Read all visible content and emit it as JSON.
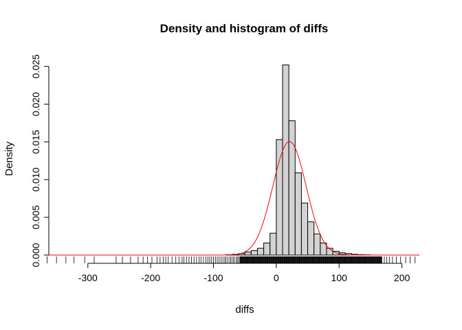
{
  "chart_data": {
    "type": "bar",
    "title": "Density and histogram of diffs",
    "xlabel": "diffs",
    "ylabel": "Density",
    "xlim": [
      -360,
      230
    ],
    "ylim": [
      0,
      0.0256
    ],
    "x_ticks": [
      -300,
      -200,
      -100,
      0,
      100,
      200
    ],
    "x_tick_labels": [
      "-300",
      "-200",
      "-100",
      "0",
      "100",
      "200"
    ],
    "y_ticks": [
      0.0,
      0.005,
      0.01,
      0.015,
      0.02,
      0.025
    ],
    "y_tick_labels": [
      "0.000",
      "0.005",
      "0.010",
      "0.015",
      "0.020",
      "0.025"
    ],
    "grid": false,
    "histogram": {
      "bin_width": 10,
      "bins": [
        {
          "x0": -310,
          "x1": -300,
          "density": 0.0
        },
        {
          "x0": -300,
          "x1": -290,
          "density": 0.0
        },
        {
          "x0": -290,
          "x1": -280,
          "density": 0.0
        },
        {
          "x0": -280,
          "x1": -270,
          "density": 0.0
        },
        {
          "x0": -270,
          "x1": -260,
          "density": 0.0
        },
        {
          "x0": -260,
          "x1": -250,
          "density": 0.0
        },
        {
          "x0": -250,
          "x1": -240,
          "density": 0.0
        },
        {
          "x0": -240,
          "x1": -230,
          "density": 0.0
        },
        {
          "x0": -230,
          "x1": -220,
          "density": 0.0
        },
        {
          "x0": -220,
          "x1": -210,
          "density": 0.0
        },
        {
          "x0": -210,
          "x1": -200,
          "density": 0.0
        },
        {
          "x0": -200,
          "x1": -190,
          "density": 0.0
        },
        {
          "x0": -190,
          "x1": -180,
          "density": 0.0
        },
        {
          "x0": -180,
          "x1": -170,
          "density": 0.0
        },
        {
          "x0": -170,
          "x1": -160,
          "density": 0.0
        },
        {
          "x0": -160,
          "x1": -150,
          "density": 0.0
        },
        {
          "x0": -150,
          "x1": -140,
          "density": 0.0
        },
        {
          "x0": -140,
          "x1": -130,
          "density": 0.0
        },
        {
          "x0": -130,
          "x1": -120,
          "density": 0.0
        },
        {
          "x0": -120,
          "x1": -110,
          "density": 0.0
        },
        {
          "x0": -110,
          "x1": -100,
          "density": 0.0
        },
        {
          "x0": -100,
          "x1": -90,
          "density": 0.0
        },
        {
          "x0": -90,
          "x1": -80,
          "density": 0.0
        },
        {
          "x0": -80,
          "x1": -70,
          "density": 5e-05
        },
        {
          "x0": -70,
          "x1": -60,
          "density": 0.0001
        },
        {
          "x0": -60,
          "x1": -50,
          "density": 0.0002
        },
        {
          "x0": -50,
          "x1": -40,
          "density": 0.0004
        },
        {
          "x0": -40,
          "x1": -30,
          "density": 0.0006
        },
        {
          "x0": -30,
          "x1": -20,
          "density": 0.0009
        },
        {
          "x0": -20,
          "x1": -10,
          "density": 0.0016
        },
        {
          "x0": -10,
          "x1": 0,
          "density": 0.0029
        },
        {
          "x0": 0,
          "x1": 10,
          "density": 0.0153
        },
        {
          "x0": 10,
          "x1": 20,
          "density": 0.0252
        },
        {
          "x0": 20,
          "x1": 30,
          "density": 0.0178
        },
        {
          "x0": 30,
          "x1": 40,
          "density": 0.0109
        },
        {
          "x0": 40,
          "x1": 50,
          "density": 0.0069
        },
        {
          "x0": 50,
          "x1": 60,
          "density": 0.0044
        },
        {
          "x0": 60,
          "x1": 70,
          "density": 0.0028
        },
        {
          "x0": 70,
          "x1": 80,
          "density": 0.0016
        },
        {
          "x0": 80,
          "x1": 90,
          "density": 0.0009
        },
        {
          "x0": 90,
          "x1": 100,
          "density": 0.0005
        },
        {
          "x0": 100,
          "x1": 110,
          "density": 0.0003
        },
        {
          "x0": 110,
          "x1": 120,
          "density": 0.0002
        },
        {
          "x0": 120,
          "x1": 130,
          "density": 0.0001
        },
        {
          "x0": 130,
          "x1": 140,
          "density": 5e-05
        },
        {
          "x0": 140,
          "x1": 150,
          "density": 3e-05
        },
        {
          "x0": 150,
          "x1": 160,
          "density": 0.0
        },
        {
          "x0": 160,
          "x1": 170,
          "density": 0.0
        },
        {
          "x0": 170,
          "x1": 180,
          "density": 0.0
        },
        {
          "x0": 180,
          "x1": 190,
          "density": 0.0
        },
        {
          "x0": 190,
          "x1": 200,
          "density": 0.0
        },
        {
          "x0": 200,
          "x1": 210,
          "density": 0.0
        },
        {
          "x0": 210,
          "x1": 220,
          "density": 0.0
        }
      ]
    },
    "density_curve": {
      "distribution": "normal",
      "mean": 21,
      "sd": 26.5,
      "x_range": [
        -370,
        228
      ],
      "color": "#ff0000"
    },
    "rug": {
      "sparse_values": [
        -365,
        -350,
        -335,
        -322,
        -305,
        -290,
        -255,
        -245,
        -232,
        -220,
        -212,
        -205,
        -198,
        -190,
        -185,
        -180,
        -176,
        -172,
        -166,
        -160,
        -155,
        -150,
        -147,
        -143,
        -139,
        -135,
        -131,
        -127,
        -123,
        -120,
        -116,
        -112,
        -109,
        -106,
        -103,
        -100,
        -97,
        -94,
        -91,
        -88,
        -85,
        -82,
        -80,
        -77,
        -74,
        -72,
        -69,
        -67,
        -64,
        -62,
        -60,
        -58,
        168,
        172,
        176,
        180,
        185,
        191,
        198,
        206,
        213,
        221
      ],
      "dense_range": [
        -58,
        168
      ]
    },
    "colors": {
      "bar_fill": "#d3d3d3",
      "bar_stroke": "#000000",
      "density": "#ff0000"
    }
  }
}
